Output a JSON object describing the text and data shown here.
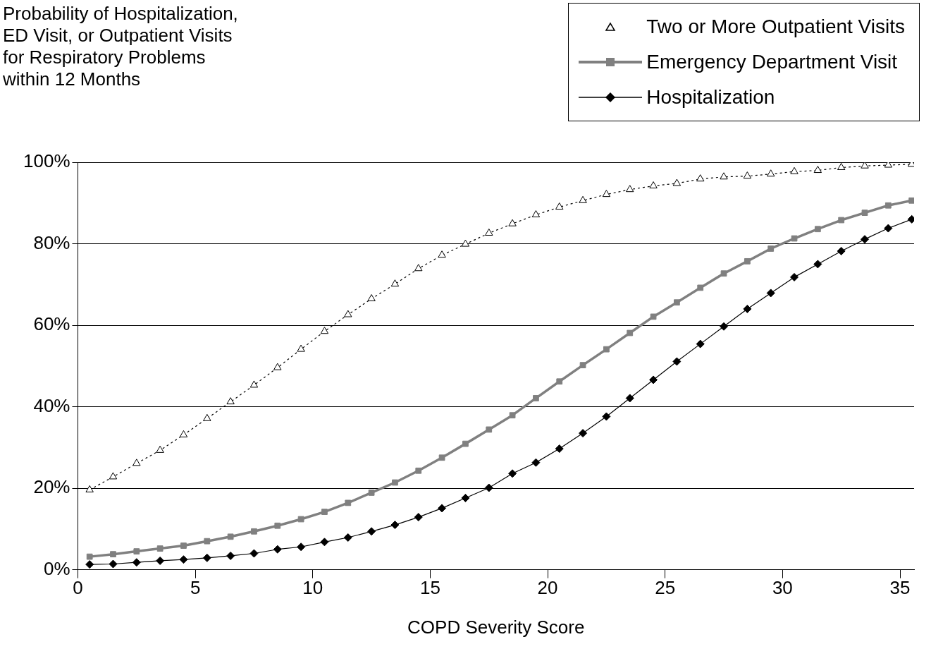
{
  "chart_data": {
    "type": "line",
    "ylabel": "Probability of Hospitalization, ED Visit, or Outpatient Visits for Respiratory Problems within 12 Months",
    "xlabel": "COPD Severity Score",
    "x": [
      0.5,
      1.5,
      2.5,
      3.5,
      4.5,
      5.5,
      6.5,
      7.5,
      8.5,
      9.5,
      10.5,
      11.5,
      12.5,
      13.5,
      14.5,
      15.5,
      16.5,
      17.5,
      18.5,
      19.5,
      20.5,
      21.5,
      22.5,
      23.5,
      24.5,
      25.5,
      26.5,
      27.5,
      28.5,
      29.5,
      30.5,
      31.5,
      32.5,
      33.5,
      34.5,
      35.5
    ],
    "series": [
      {
        "name": "Two or More Outpatient Visits",
        "color": "#000000",
        "marker": "triangle",
        "line_style": "dotted",
        "values": [
          19.6,
          22.8,
          26.1,
          29.3,
          33.1,
          37.1,
          41.2,
          45.3,
          49.6,
          54.1,
          58.5,
          62.6,
          66.5,
          70.1,
          73.9,
          77.2,
          79.9,
          82.6,
          84.9,
          87.1,
          89.0,
          90.6,
          92.1,
          93.3,
          94.2,
          94.8,
          95.9,
          96.4,
          96.6,
          97.1,
          97.7,
          98.0,
          98.7,
          99.1,
          99.3,
          99.5
        ]
      },
      {
        "name": "Emergency Department Visit",
        "color": "#808080",
        "marker": "square",
        "line_style": "solid",
        "values": [
          3.2,
          3.8,
          4.5,
          5.2,
          5.9,
          7.0,
          8.1,
          9.4,
          10.8,
          12.4,
          14.2,
          16.4,
          18.9,
          21.4,
          24.3,
          27.5,
          30.9,
          34.4,
          37.9,
          42.1,
          46.2,
          50.2,
          54.1,
          58.1,
          62.1,
          65.6,
          69.2,
          72.7,
          75.7,
          78.8,
          81.3,
          83.6,
          85.8,
          87.6,
          89.4,
          90.6
        ]
      },
      {
        "name": "Hospitalization",
        "color": "#000000",
        "marker": "diamond",
        "line_style": "solid",
        "values": [
          1.3,
          1.4,
          1.8,
          2.2,
          2.5,
          2.9,
          3.4,
          4.0,
          5.0,
          5.6,
          6.8,
          7.9,
          9.4,
          11.0,
          12.9,
          15.1,
          17.6,
          20.1,
          23.6,
          26.3,
          29.7,
          33.5,
          37.6,
          42.1,
          46.6,
          51.1,
          55.4,
          59.7,
          64.0,
          67.9,
          71.8,
          75.0,
          78.2,
          81.1,
          83.8,
          86.0
        ]
      }
    ],
    "xlim": [
      0,
      35.6
    ],
    "xticks": [
      0,
      5,
      10,
      15,
      20,
      25,
      30,
      35
    ],
    "ylim": [
      0,
      100
    ],
    "yticks": [
      {
        "value": 0,
        "label": "0%"
      },
      {
        "value": 20,
        "label": "20%"
      },
      {
        "value": 40,
        "label": "40%"
      },
      {
        "value": 60,
        "label": "60%"
      },
      {
        "value": 80,
        "label": "80%"
      },
      {
        "value": 100,
        "label": "100%"
      }
    ],
    "grid": "y",
    "legend": "top right"
  }
}
